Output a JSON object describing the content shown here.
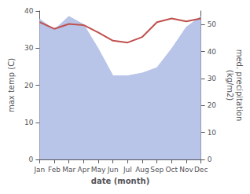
{
  "chart_data": {
    "type": "line",
    "xlabel": "date (month)",
    "ylabel": "max temp (C)",
    "y2label": "med. precipitation\n(kg/m2)",
    "categories": [
      "Jan",
      "Feb",
      "Mar",
      "Apr",
      "May",
      "Jun",
      "Jul",
      "Aug",
      "Sep",
      "Oct",
      "Nov",
      "Dec"
    ],
    "series": [
      {
        "type": "area",
        "axis": "y2",
        "color": "#b8c4e8",
        "values": [
          52.0,
          48.0,
          53.0,
          50.0,
          41.0,
          31.0,
          31.0,
          32.0,
          34.0,
          41.0,
          49.0,
          53.0
        ]
      },
      {
        "type": "line",
        "color": "#c0504d",
        "values": [
          37.0,
          35.2,
          36.5,
          36.2,
          34.2,
          32.0,
          31.5,
          33.0,
          37.0,
          38.0,
          37.2,
          38.0
        ]
      }
    ],
    "ylim": [
      0,
      40
    ],
    "yticks": [
      0,
      10,
      20,
      30,
      40
    ],
    "y2lim": [
      0,
      55
    ],
    "y2ticks": [
      0,
      10,
      20,
      30,
      40,
      50
    ],
    "grid": false
  }
}
